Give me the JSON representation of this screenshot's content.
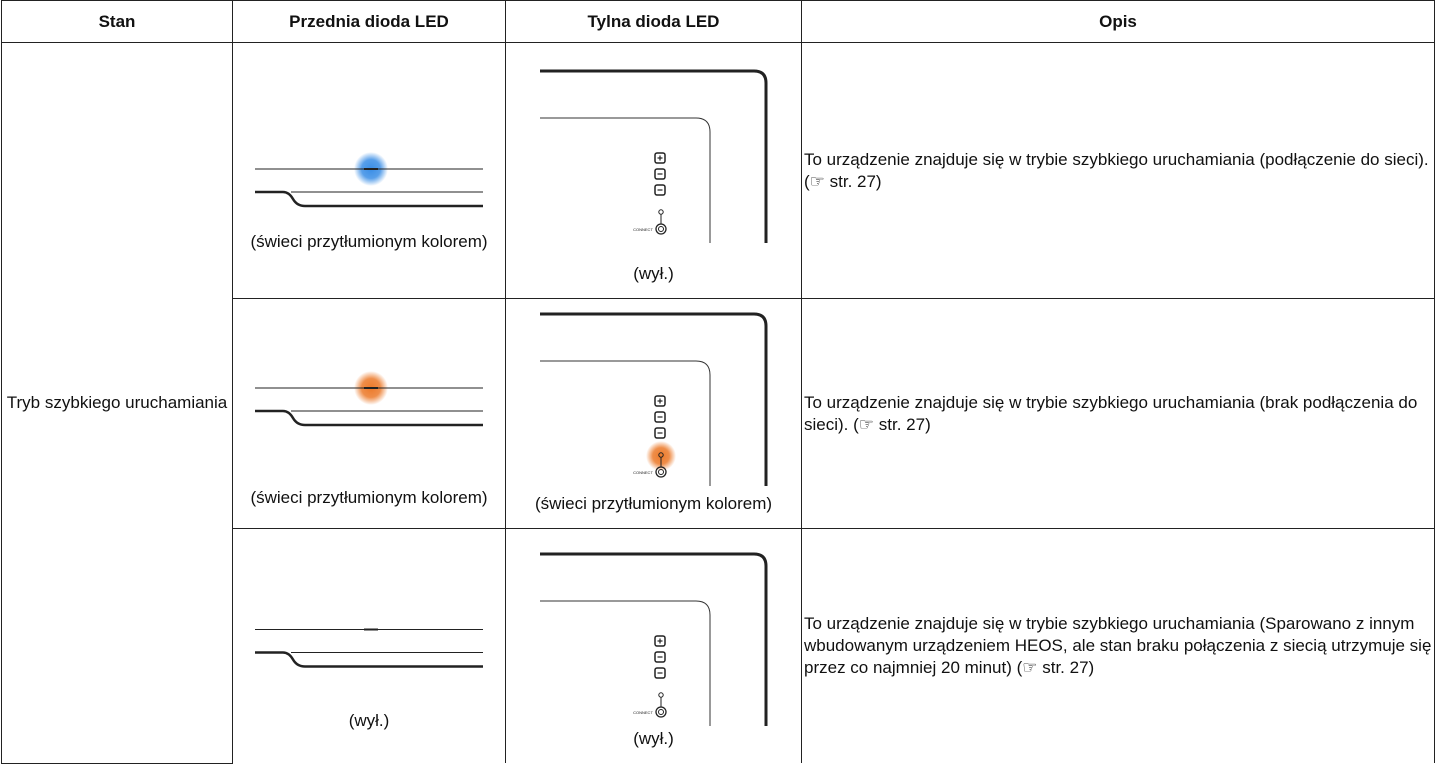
{
  "table": {
    "header": [
      "Stan",
      "Przednia dioda LED",
      "Tylna dioda LED",
      "Opis"
    ],
    "state": "Tryb szybkiego uruchamiania",
    "rows": [
      {
        "front": "(świeci przytłumionym kolorem)",
        "rear": "(wył.)",
        "description": "To urządzenie znajduje się w trybie szybkiego uruchamiania (podłączenie do sieci).",
        "ref": "(☞ str. 27)"
      },
      {
        "front": "(świeci przytłumionym kolorem)",
        "rear": "(świeci przytłumionym kolorem)",
        "description": "To urządzenie znajduje się w trybie szybkiego uruchamiania (brak podłączenia do sieci).",
        "ref": "(☞ str. 27)"
      },
      {
        "front": "(wył.)",
        "rear": "(wył.)",
        "description": "To urządzenie znajduje się w trybie szybkiego uruchamiania (Sparowano z innym wbudowanym urządzeniem HEOS, ale stan braku połączenia z siecią utrzymuje się przez co najmniej 20 minut)",
        "ref": "(☞ str. 27)"
      }
    ],
    "connect_label": "CONNECT"
  }
}
